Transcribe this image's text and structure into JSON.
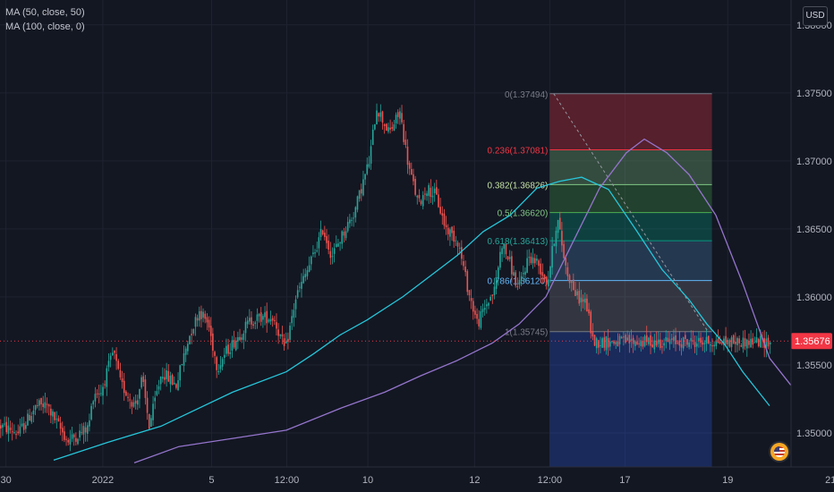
{
  "legend": {
    "ma1": "MA (50, close, 50)",
    "ma2": "MA (100, close, 0)"
  },
  "currency_label": "USD",
  "colors": {
    "background": "#131722",
    "grid": "#1f2330",
    "up": "#26a69a",
    "down": "#ef5350",
    "ma1": "#26c6da",
    "ma2": "#9575cd",
    "price_label": "#f23645"
  },
  "chart_data": {
    "type": "candlestick",
    "ylim": [
      1.3475,
      1.3815
    ],
    "y_ticks": [
      {
        "value": 1.35,
        "label": "1.35000"
      },
      {
        "value": 1.355,
        "label": "1.35500"
      },
      {
        "value": 1.36,
        "label": "1.36000"
      },
      {
        "value": 1.365,
        "label": "1.36500"
      },
      {
        "value": 1.37,
        "label": "1.37000"
      },
      {
        "value": 1.375,
        "label": "1.37500"
      },
      {
        "value": 1.38,
        "label": "1.38000"
      }
    ],
    "x_tick_labels": [
      "30",
      "2022",
      "5",
      "12:00",
      "10",
      "12",
      "12:00",
      "17",
      "19",
      "21"
    ],
    "bar_count": 400,
    "x_tick_bars": [
      3,
      52,
      107,
      145,
      186,
      240,
      278,
      316,
      368,
      420
    ],
    "current_price": 1.35676,
    "current_price_label": "1.35676",
    "anchors": [
      [
        0,
        1.3505
      ],
      [
        20,
        1.35
      ],
      [
        40,
        1.352
      ],
      [
        52,
        1.352
      ],
      [
        62,
        1.3508
      ],
      [
        75,
        1.3494
      ],
      [
        98,
        1.3504
      ],
      [
        104,
        1.353
      ],
      [
        112,
        1.353
      ],
      [
        126,
        1.356
      ],
      [
        134,
        1.3536
      ],
      [
        150,
        1.352
      ],
      [
        158,
        1.354
      ],
      [
        166,
        1.3505
      ],
      [
        180,
        1.3545
      ],
      [
        196,
        1.3535
      ],
      [
        210,
        1.357
      ],
      [
        222,
        1.359
      ],
      [
        232,
        1.358
      ],
      [
        242,
        1.3548
      ],
      [
        252,
        1.356
      ],
      [
        262,
        1.3568
      ],
      [
        278,
        1.3582
      ],
      [
        290,
        1.3585
      ],
      [
        305,
        1.3585
      ],
      [
        318,
        1.356
      ],
      [
        330,
        1.36
      ],
      [
        343,
        1.362
      ],
      [
        352,
        1.3635
      ],
      [
        360,
        1.365
      ],
      [
        370,
        1.363
      ],
      [
        385,
        1.365
      ],
      [
        395,
        1.3662
      ],
      [
        403,
        1.368
      ],
      [
        412,
        1.37
      ],
      [
        420,
        1.374
      ],
      [
        434,
        1.372
      ],
      [
        446,
        1.3736
      ],
      [
        456,
        1.3695
      ],
      [
        467,
        1.3668
      ],
      [
        476,
        1.368
      ],
      [
        486,
        1.3675
      ],
      [
        497,
        1.3651
      ],
      [
        511,
        1.3641
      ],
      [
        523,
        1.3603
      ],
      [
        533,
        1.358
      ],
      [
        543,
        1.3595
      ],
      [
        552,
        1.3605
      ],
      [
        560,
        1.364
      ],
      [
        569,
        1.3625
      ],
      [
        578,
        1.3605
      ],
      [
        590,
        1.363
      ],
      [
        600,
        1.3625
      ],
      [
        611,
        1.361
      ],
      [
        622,
        1.3658
      ],
      [
        632,
        1.362
      ],
      [
        644,
        1.36
      ],
      [
        654,
        1.3596
      ],
      [
        662,
        1.3567
      ]
    ],
    "series": [
      {
        "name": "MA (50, close, 50)",
        "values": [
          [
            60,
            1.348
          ],
          [
            120,
            1.3493
          ],
          [
            180,
            1.3505
          ],
          [
            260,
            1.353
          ],
          [
            320,
            1.3545
          ],
          [
            350,
            1.3558
          ],
          [
            380,
            1.3572
          ],
          [
            410,
            1.3583
          ],
          [
            450,
            1.36
          ],
          [
            480,
            1.3615
          ],
          [
            510,
            1.363
          ],
          [
            540,
            1.3648
          ],
          [
            570,
            1.366
          ],
          [
            600,
            1.368
          ],
          [
            625,
            1.3685
          ],
          [
            650,
            1.3688
          ],
          [
            680,
            1.3679
          ],
          [
            710,
            1.365
          ],
          [
            740,
            1.362
          ],
          [
            770,
            1.3598
          ],
          [
            790,
            1.358
          ],
          [
            810,
            1.3565
          ],
          [
            830,
            1.3545
          ],
          [
            860,
            1.352
          ]
        ]
      },
      {
        "name": "MA (100, close, 0)",
        "values": [
          [
            150,
            1.3478
          ],
          [
            200,
            1.349
          ],
          [
            260,
            1.3496
          ],
          [
            320,
            1.3502
          ],
          [
            380,
            1.3518
          ],
          [
            430,
            1.353
          ],
          [
            470,
            1.3542
          ],
          [
            510,
            1.3553
          ],
          [
            550,
            1.3566
          ],
          [
            580,
            1.358
          ],
          [
            610,
            1.36
          ],
          [
            640,
            1.364
          ],
          [
            670,
            1.368
          ],
          [
            700,
            1.3706
          ],
          [
            720,
            1.3716
          ],
          [
            745,
            1.3706
          ],
          [
            770,
            1.369
          ],
          [
            800,
            1.366
          ],
          [
            830,
            1.361
          ],
          [
            860,
            1.3555
          ],
          [
            884,
            1.3535
          ]
        ]
      }
    ],
    "fibonacci": {
      "levels": [
        {
          "ratio": "0",
          "value": 1.37494,
          "label": "0(1.37494)",
          "line": "#787b86",
          "fill": "rgba(242,54,69,0.30)"
        },
        {
          "ratio": "0.236",
          "value": 1.37081,
          "label": "0.236(1.37081)",
          "line": "#f23645",
          "fill": "rgba(129,199,132,0.30)"
        },
        {
          "ratio": "0.382",
          "value": 1.36826,
          "label": "0.382(1.36826)",
          "line": "#81c784",
          "fill": "rgba(76,175,80,0.28)"
        },
        {
          "ratio": "0.5",
          "value": 1.3662,
          "label": "0.5(1.36620)",
          "line": "#4caf50",
          "fill": "rgba(8,153,129,0.32)"
        },
        {
          "ratio": "0.618",
          "value": 1.36413,
          "label": "0.618(1.36413)",
          "line": "#089981",
          "fill": "rgba(100,181,246,0.22)"
        },
        {
          "ratio": "0.786",
          "value": 1.3612,
          "label": "0.786(1.36120)",
          "line": "#64b5f6",
          "fill": "rgba(180,180,190,0.20)"
        },
        {
          "ratio": "1",
          "value": 1.35745,
          "label": "1(1.35745)",
          "line": "#787b86",
          "fill": "rgba(41,98,255,0.26)"
        }
      ],
      "label_colors": [
        "#787b86",
        "#f23645",
        "#c5e1a5",
        "#81c784",
        "#26a69a",
        "#64b5f6",
        "#787b86"
      ],
      "bottom": 1.3475
    }
  }
}
